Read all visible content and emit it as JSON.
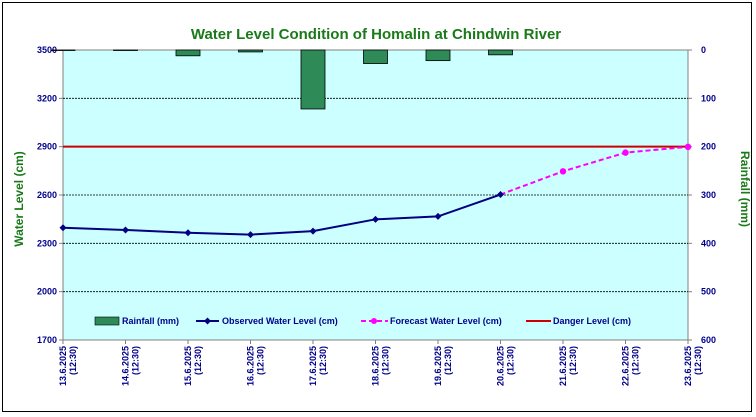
{
  "chart_data": {
    "type": "line",
    "title": "Water Level Condition of Homalin at Chindwin River",
    "ylabel": "Water Level (cm)",
    "y2label": "Rainfall (mm)",
    "ylim": [
      1700,
      3500
    ],
    "y_ticks": [
      1700,
      2000,
      2300,
      2600,
      2900,
      3200,
      3500
    ],
    "y2lim": [
      0,
      600
    ],
    "y2_ticks": [
      0,
      100,
      200,
      300,
      400,
      500,
      600
    ],
    "y2_reversed": true,
    "grid": true,
    "legend_position": "bottom-inside",
    "categories": [
      "13.6.2025 (12:30)",
      "14.6.2025 (12:30)",
      "15.6.2025 (12:30)",
      "16.6.2025 (12:30)",
      "17.6.2025 (12:30)",
      "18.6.2025 (12:30)",
      "19.6.2025 (12:30)",
      "20.6.2025 (12:30)",
      "21.6.2025 (12:30)",
      "22.6.2025 (12:30)",
      "23.6.2025 (12:30)"
    ],
    "series": [
      {
        "name": "Rainfall (mm)",
        "type": "bar",
        "axis": "right",
        "color": "#2e8b57",
        "values": [
          0,
          0,
          12,
          4,
          122,
          28,
          22,
          10,
          null,
          null,
          null
        ]
      },
      {
        "name": "Observed Water Level (cm)",
        "type": "line",
        "axis": "left",
        "color": "#000080",
        "values": [
          2397,
          2383,
          2366,
          2354,
          2376,
          2449,
          2467,
          2603,
          null,
          null,
          null
        ]
      },
      {
        "name": "Forecast Water Level (cm)",
        "type": "line",
        "dashed": true,
        "axis": "left",
        "color": "#ff00ff",
        "values": [
          null,
          null,
          null,
          null,
          null,
          null,
          null,
          null,
          2747,
          2863,
          2899
        ]
      },
      {
        "name": "Danger Level (cm)",
        "type": "hline",
        "axis": "left",
        "color": "#cc0000",
        "values": [
          2900,
          2900,
          2900,
          2900,
          2900,
          2900,
          2900,
          2900,
          2900,
          2900,
          2900
        ]
      }
    ]
  },
  "colors": {
    "plot_background": "#ccffff",
    "text": "#00008b",
    "title": "#1a7a1a"
  }
}
